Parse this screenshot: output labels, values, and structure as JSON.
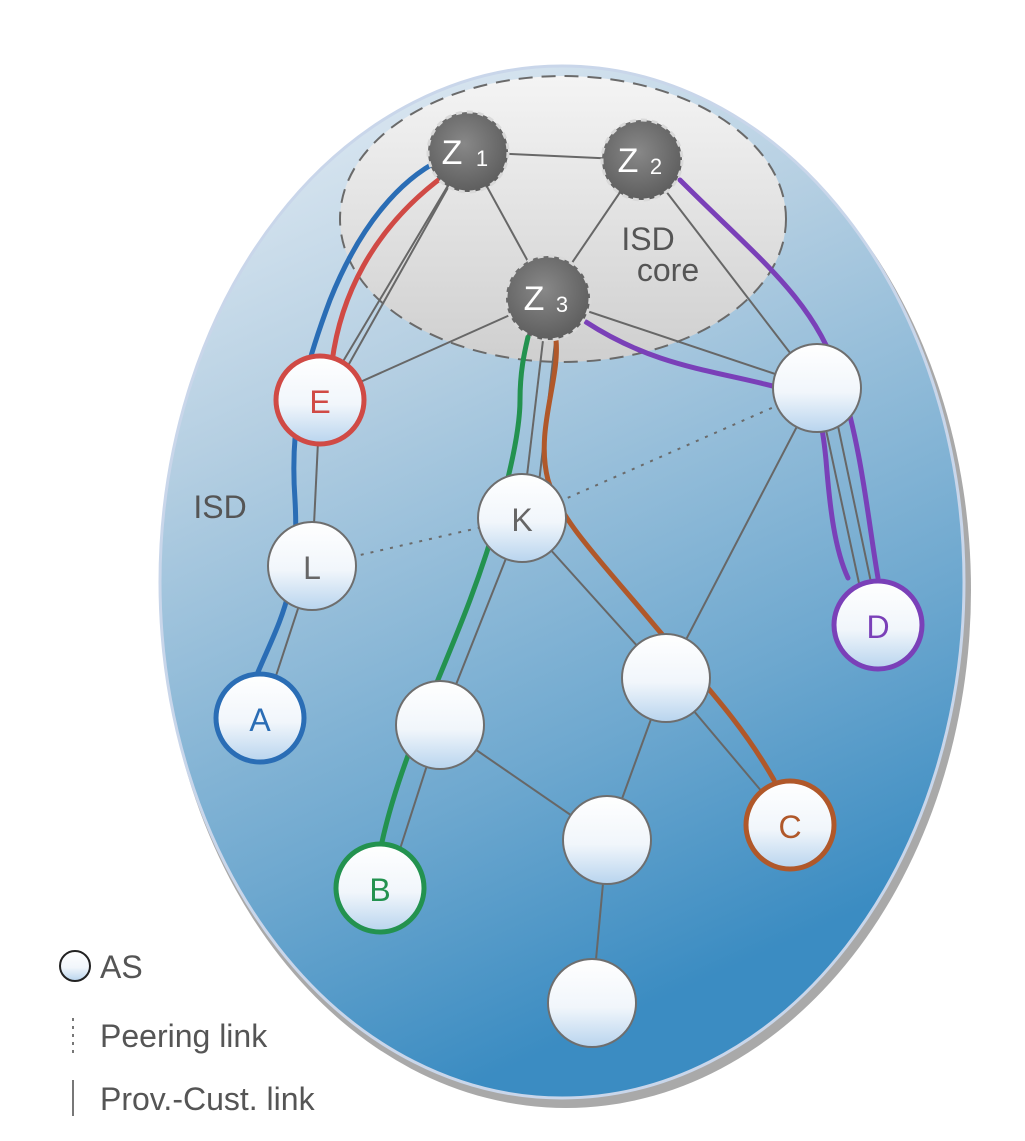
{
  "isd_label": "ISD",
  "core_label_line1": "ISD",
  "core_label_line2": "core",
  "core_nodes": [
    {
      "id": "Z1",
      "letter": "Z",
      "sub": "1"
    },
    {
      "id": "Z2",
      "letter": "Z",
      "sub": "2"
    },
    {
      "id": "Z3",
      "letter": "Z",
      "sub": "3"
    }
  ],
  "as_nodes": [
    {
      "id": "E",
      "label": "E",
      "color": "#d04a45"
    },
    {
      "id": "L",
      "label": "L",
      "color": "#6e6e6e"
    },
    {
      "id": "K",
      "label": "K",
      "color": "#6e6e6e"
    },
    {
      "id": "A",
      "label": "A",
      "color": "#2a6db5"
    },
    {
      "id": "B",
      "label": "B",
      "color": "#23924f"
    },
    {
      "id": "C",
      "label": "C",
      "color": "#b0582a"
    },
    {
      "id": "D",
      "label": "D",
      "color": "#7a40b8"
    },
    {
      "id": "R",
      "label": "",
      "color": "#6e6e6e"
    },
    {
      "id": "M1",
      "label": "",
      "color": "#6e6e6e"
    },
    {
      "id": "M2",
      "label": "",
      "color": "#6e6e6e"
    },
    {
      "id": "N1",
      "label": "",
      "color": "#6e6e6e"
    },
    {
      "id": "N2",
      "label": "",
      "color": "#6e6e6e"
    }
  ],
  "paths": [
    {
      "from": "A",
      "to": "Z1",
      "color": "#2a6db5"
    },
    {
      "from": "E",
      "to": "Z1",
      "color": "#d04a45"
    },
    {
      "from": "B",
      "to": "Z3",
      "color": "#23924f"
    },
    {
      "from": "C",
      "to": "Z3",
      "color": "#b0582a"
    },
    {
      "from": "D",
      "to": "Z2",
      "color": "#7a40b8"
    },
    {
      "from": "D",
      "to": "Z3",
      "color": "#7a40b8"
    }
  ],
  "legend": {
    "as": "AS",
    "peering": "Peering link",
    "provcust": "Prov.-Cust. link"
  }
}
